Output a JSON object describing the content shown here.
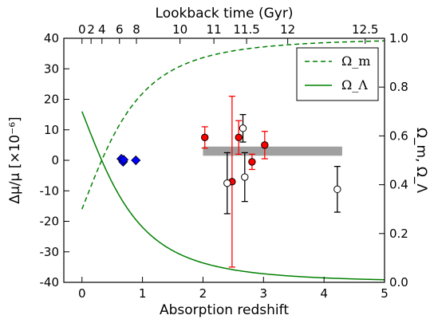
{
  "chart_data": {
    "type": "scatter",
    "title": "",
    "xlabel": "Absorption redshift",
    "ylabel": "Δμ/μ [×10⁻⁶]",
    "y2label": "Ω_m, Ω_Λ",
    "top_xlabel": "Lookback time (Gyr)",
    "xlim": [
      -0.3,
      5.0
    ],
    "ylim": [
      -40,
      40
    ],
    "y2lim": [
      0.0,
      1.0
    ],
    "x_ticks": [
      0,
      1,
      2,
      3,
      4,
      5
    ],
    "y_ticks": [
      -40,
      -30,
      -20,
      -10,
      0,
      10,
      20,
      30,
      40
    ],
    "y2_ticks": [
      "0.0",
      "0.2",
      "0.4",
      "0.6",
      "0.8",
      "1.0"
    ],
    "top_ticks": [
      {
        "label": "0",
        "z": 0.0
      },
      {
        "label": "2",
        "z": 0.15
      },
      {
        "label": "4",
        "z": 0.33
      },
      {
        "label": "6",
        "z": 0.62
      },
      {
        "label": "8",
        "z": 0.9
      },
      {
        "label": "10",
        "z": 1.62
      },
      {
        "label": "11",
        "z": 2.18
      },
      {
        "label": "11.5",
        "z": 2.72
      },
      {
        "label": "12",
        "z": 3.4
      },
      {
        "label": "12.5",
        "z": 4.68
      }
    ],
    "grid": false,
    "legend_position": "top-right",
    "legend": [
      {
        "label": "Ω_m",
        "style": "dashed",
        "color": "#008000"
      },
      {
        "label": "Ω_Λ",
        "style": "solid",
        "color": "#008000"
      }
    ],
    "band": {
      "x": [
        2.0,
        4.3
      ],
      "y": [
        1.5,
        4.5
      ],
      "color": "#a0a0a0"
    },
    "series": [
      {
        "marker": "diamond",
        "color": "#0000ff",
        "edge": "#000000",
        "points": [
          {
            "x": 0.65,
            "y": 0.5
          },
          {
            "x": 0.68,
            "y": -0.5
          },
          {
            "x": 0.69,
            "y": 0.2
          },
          {
            "x": 0.89,
            "y": 0.0
          }
        ]
      },
      {
        "marker": "circle",
        "color": "#ff0000",
        "edge": "#000000",
        "errcolor": "#ff0000",
        "points": [
          {
            "x": 2.03,
            "y": 7.5,
            "err": 3.5
          },
          {
            "x": 2.48,
            "y": -7.0,
            "err": 28.0
          },
          {
            "x": 2.59,
            "y": 7.5,
            "err": 5.5
          },
          {
            "x": 2.81,
            "y": -0.5,
            "err": 2.5
          },
          {
            "x": 3.02,
            "y": 5.0,
            "err": 4.5
          }
        ]
      },
      {
        "marker": "circle",
        "color": "#ffffff",
        "edge": "#000000",
        "errcolor": "#000000",
        "points": [
          {
            "x": 2.4,
            "y": -7.5,
            "err": 10.0
          },
          {
            "x": 2.66,
            "y": 10.5,
            "err": 4.5
          },
          {
            "x": 2.69,
            "y": -5.5,
            "err": 8.0
          },
          {
            "x": 4.22,
            "y": -9.5,
            "err": 7.5
          }
        ]
      }
    ]
  }
}
